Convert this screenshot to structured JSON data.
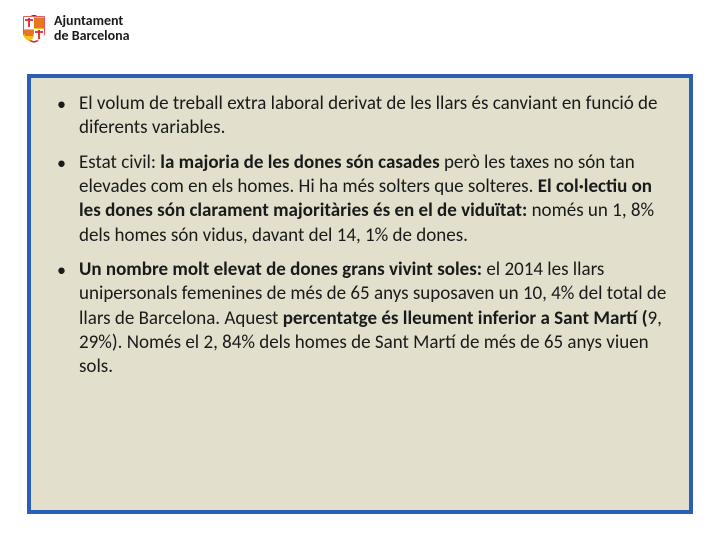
{
  "header": {
    "org_line1": "Ajuntament",
    "org_line2": "de Barcelona",
    "logo_primary": "#d8282f",
    "logo_accent": "#f5c518"
  },
  "box": {
    "border_color": "#2b5fb5",
    "background_color": "#e2e0cd"
  },
  "bullets": [
    {
      "runs": [
        {
          "t": "El volum de treball extra laboral derivat de les llars és canviant en funció de diferents variables.",
          "b": false
        }
      ]
    },
    {
      "runs": [
        {
          "t": "Estat civil: ",
          "b": false
        },
        {
          "t": "la majoria de les dones són casades ",
          "b": true
        },
        {
          "t": "però les taxes no són tan elevades com en els homes. Hi ha més solters que solteres. ",
          "b": false
        },
        {
          "t": "El col·lectiu on les dones són clarament majoritàries és en el de viduïtat: ",
          "b": true
        },
        {
          "t": "només un 1, 8% dels homes són vidus, davant del 14, 1% de dones.",
          "b": false
        }
      ]
    },
    {
      "runs": [
        {
          "t": "Un nombre molt elevat de dones grans vivint soles: ",
          "b": true
        },
        {
          "t": "el 2014 les llars unipersonals femenines de més de 65 anys suposaven un 10, 4% del total de llars de Barcelona. Aquest ",
          "b": false
        },
        {
          "t": "percentatge és lleument inferior a Sant Martí (",
          "b": true
        },
        {
          "t": "9, 29%). Només el 2, 84% dels homes de Sant Martí de més de 65 anys viuen sols.",
          "b": false
        }
      ]
    }
  ]
}
